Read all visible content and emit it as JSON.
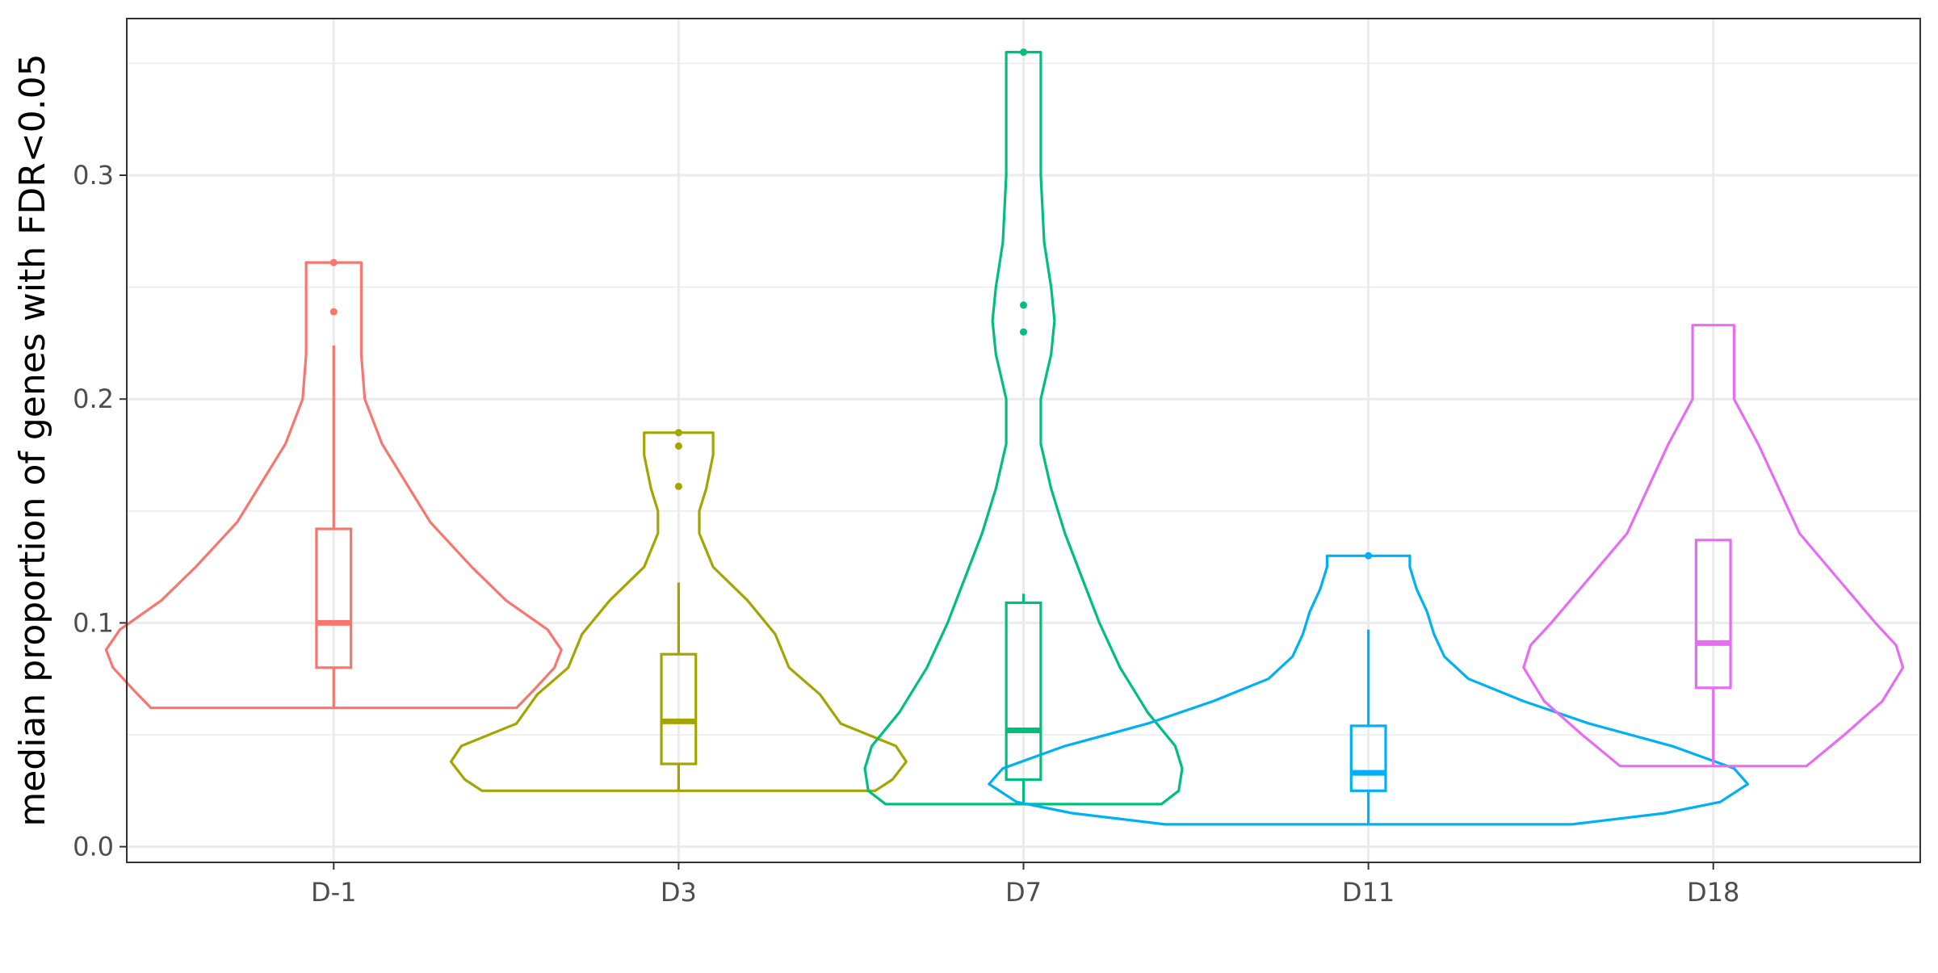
{
  "chart_data": {
    "type": "violin",
    "title": "",
    "xlabel": "",
    "ylabel": "median proportion of genes with FDR<0.05",
    "ylim": [
      -0.007,
      0.37
    ],
    "yticks": [
      0.0,
      0.1,
      0.2,
      0.3
    ],
    "ytick_labels": [
      "0.0",
      "0.1",
      "0.2",
      "0.3"
    ],
    "grid": true,
    "legend": "none",
    "categories": [
      "D-1",
      "D3",
      "D7",
      "D11",
      "D18"
    ],
    "series": [
      {
        "category": "D-1",
        "color": "#F8766D",
        "box": {
          "q1": 0.08,
          "median": 0.1,
          "q3": 0.142,
          "whisker_low": 0.062,
          "whisker_high": 0.224
        },
        "outliers": [
          0.239,
          0.261
        ],
        "violin_profile": [
          [
            0.062,
            0.0
          ],
          [
            0.062,
            0.53
          ],
          [
            0.07,
            0.58
          ],
          [
            0.08,
            0.64
          ],
          [
            0.088,
            0.66
          ],
          [
            0.097,
            0.62
          ],
          [
            0.11,
            0.5
          ],
          [
            0.125,
            0.4
          ],
          [
            0.145,
            0.28
          ],
          [
            0.16,
            0.22
          ],
          [
            0.18,
            0.14
          ],
          [
            0.2,
            0.09
          ],
          [
            0.22,
            0.08
          ],
          [
            0.24,
            0.08
          ],
          [
            0.255,
            0.08
          ],
          [
            0.261,
            0.08
          ],
          [
            0.261,
            0.0
          ]
        ]
      },
      {
        "category": "D3",
        "color": "#A3A500",
        "box": {
          "q1": 0.037,
          "median": 0.056,
          "q3": 0.086,
          "whisker_low": 0.025,
          "whisker_high": 0.118
        },
        "outliers": [
          0.161,
          0.179,
          0.185
        ],
        "violin_profile": [
          [
            0.025,
            0.0
          ],
          [
            0.025,
            0.57
          ],
          [
            0.03,
            0.62
          ],
          [
            0.038,
            0.66
          ],
          [
            0.045,
            0.63
          ],
          [
            0.055,
            0.47
          ],
          [
            0.068,
            0.41
          ],
          [
            0.08,
            0.32
          ],
          [
            0.095,
            0.28
          ],
          [
            0.11,
            0.2
          ],
          [
            0.125,
            0.1
          ],
          [
            0.14,
            0.06
          ],
          [
            0.15,
            0.06
          ],
          [
            0.16,
            0.08
          ],
          [
            0.175,
            0.1
          ],
          [
            0.185,
            0.1
          ],
          [
            0.185,
            0.0
          ]
        ]
      },
      {
        "category": "D7",
        "color": "#00BF7D",
        "box": {
          "q1": 0.03,
          "median": 0.052,
          "q3": 0.109,
          "whisker_low": 0.019,
          "whisker_high": 0.113
        },
        "outliers": [
          0.23,
          0.242,
          0.355
        ],
        "violin_profile": [
          [
            0.019,
            0.0
          ],
          [
            0.019,
            0.4
          ],
          [
            0.025,
            0.45
          ],
          [
            0.035,
            0.46
          ],
          [
            0.045,
            0.44
          ],
          [
            0.06,
            0.36
          ],
          [
            0.08,
            0.28
          ],
          [
            0.1,
            0.22
          ],
          [
            0.12,
            0.17
          ],
          [
            0.14,
            0.12
          ],
          [
            0.16,
            0.08
          ],
          [
            0.18,
            0.05
          ],
          [
            0.2,
            0.05
          ],
          [
            0.22,
            0.08
          ],
          [
            0.235,
            0.09
          ],
          [
            0.25,
            0.08
          ],
          [
            0.27,
            0.06
          ],
          [
            0.3,
            0.05
          ],
          [
            0.32,
            0.05
          ],
          [
            0.34,
            0.05
          ],
          [
            0.355,
            0.05
          ],
          [
            0.355,
            0.0
          ]
        ]
      },
      {
        "category": "D11",
        "color": "#00B0F6",
        "box": {
          "q1": 0.025,
          "median": 0.033,
          "q3": 0.054,
          "whisker_low": 0.01,
          "whisker_high": 0.097
        },
        "outliers": [
          0.13
        ],
        "violin_profile": [
          [
            0.01,
            0.0
          ],
          [
            0.01,
            0.59
          ],
          [
            0.015,
            0.86
          ],
          [
            0.02,
            1.02
          ],
          [
            0.028,
            1.1
          ],
          [
            0.035,
            1.06
          ],
          [
            0.045,
            0.88
          ],
          [
            0.055,
            0.64
          ],
          [
            0.065,
            0.45
          ],
          [
            0.075,
            0.29
          ],
          [
            0.085,
            0.22
          ],
          [
            0.095,
            0.19
          ],
          [
            0.105,
            0.17
          ],
          [
            0.115,
            0.14
          ],
          [
            0.125,
            0.12
          ],
          [
            0.13,
            0.12
          ],
          [
            0.13,
            0.0
          ]
        ]
      },
      {
        "category": "D18",
        "color": "#E76BF3",
        "box": {
          "q1": 0.071,
          "median": 0.091,
          "q3": 0.137,
          "whisker_low": 0.036,
          "whisker_high": 0.137
        },
        "outliers": [],
        "violin_profile": [
          [
            0.036,
            0.0
          ],
          [
            0.036,
            0.27
          ],
          [
            0.05,
            0.38
          ],
          [
            0.065,
            0.49
          ],
          [
            0.08,
            0.55
          ],
          [
            0.09,
            0.53
          ],
          [
            0.1,
            0.47
          ],
          [
            0.12,
            0.36
          ],
          [
            0.14,
            0.25
          ],
          [
            0.16,
            0.19
          ],
          [
            0.18,
            0.13
          ],
          [
            0.2,
            0.06
          ],
          [
            0.215,
            0.06
          ],
          [
            0.233,
            0.06
          ],
          [
            0.233,
            0.0
          ]
        ]
      }
    ]
  }
}
